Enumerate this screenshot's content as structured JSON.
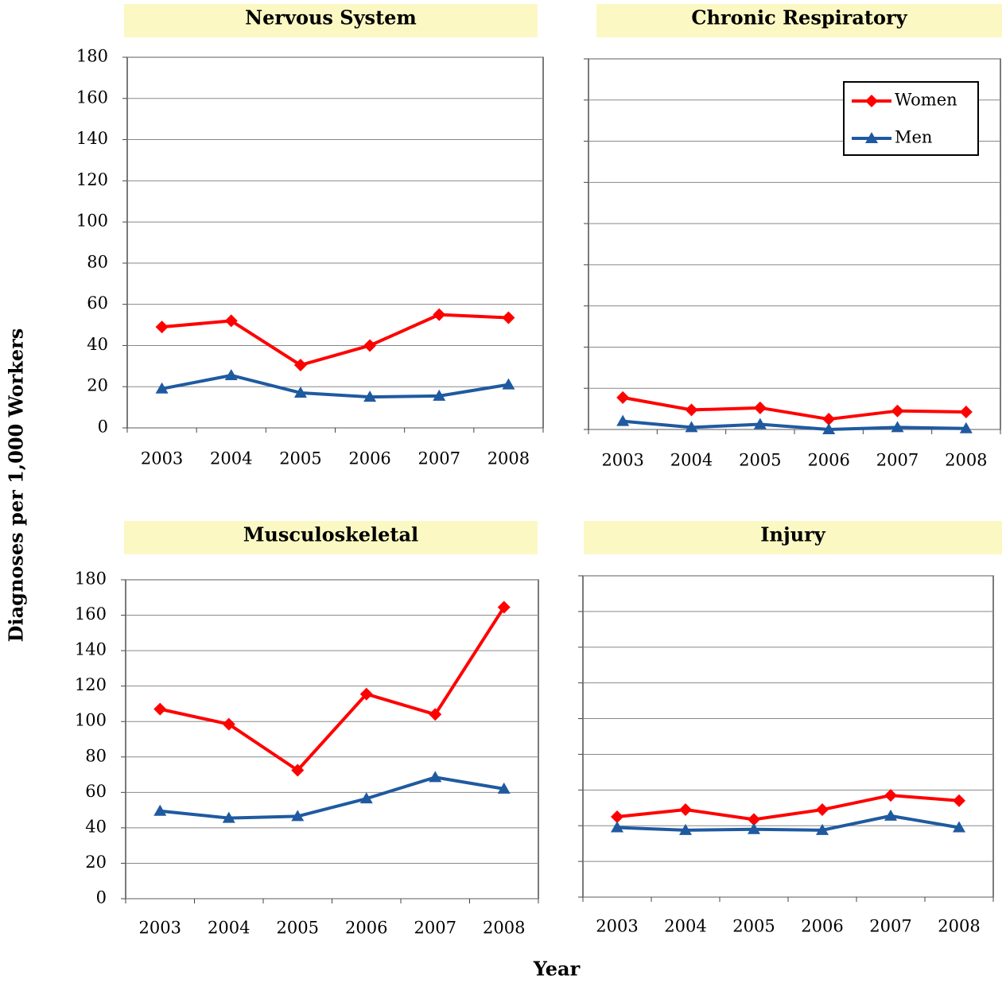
{
  "ylabel": "Diagnoses per 1,000 Workers",
  "xlabel": "Year",
  "chart_data": [
    {
      "type": "line",
      "title": "Nervous System",
      "categories": [
        "2003",
        "2004",
        "2005",
        "2006",
        "2007",
        "2008"
      ],
      "ylim": [
        0,
        180
      ],
      "yticks": [
        0,
        20,
        40,
        60,
        80,
        100,
        120,
        140,
        160,
        180
      ],
      "grid": true,
      "show_ytick_labels": true,
      "series": [
        {
          "color": "#ff0000",
          "marker": "diamond",
          "values": [
            49,
            52,
            30.5,
            40,
            55,
            53.5
          ]
        },
        {
          "color": "#1f5aa0",
          "marker": "triangle",
          "values": [
            19,
            25.5,
            17,
            15,
            15.5,
            21
          ]
        }
      ]
    },
    {
      "type": "line",
      "title": "Chronic Respiratory",
      "categories": [
        "2003",
        "2004",
        "2005",
        "2006",
        "2007",
        "2008"
      ],
      "ylim": [
        0,
        180
      ],
      "yticks": [
        0,
        20,
        40,
        60,
        80,
        100,
        120,
        140,
        160,
        180
      ],
      "grid": true,
      "show_ytick_labels": false,
      "legend": "upper right",
      "series": [
        {
          "name": "Women",
          "color": "#ff0000",
          "marker": "diamond",
          "values": [
            15.5,
            9.5,
            10.5,
            5,
            9,
            8.5
          ]
        },
        {
          "name": "Men",
          "color": "#1f5aa0",
          "marker": "triangle",
          "values": [
            4,
            1,
            2.5,
            0,
            1,
            0.5
          ]
        }
      ]
    },
    {
      "type": "line",
      "title": "Musculoskeletal",
      "categories": [
        "2003",
        "2004",
        "2005",
        "2006",
        "2007",
        "2008"
      ],
      "ylim": [
        0,
        180
      ],
      "yticks": [
        0,
        20,
        40,
        60,
        80,
        100,
        120,
        140,
        160,
        180
      ],
      "grid": true,
      "show_ytick_labels": true,
      "series": [
        {
          "color": "#ff0000",
          "marker": "diamond",
          "values": [
            107,
            98.5,
            72.5,
            115.5,
            104,
            164.5
          ]
        },
        {
          "color": "#1f5aa0",
          "marker": "triangle",
          "values": [
            49.5,
            45.5,
            46.5,
            56.5,
            68.5,
            62
          ]
        }
      ]
    },
    {
      "type": "line",
      "title": "Injury",
      "categories": [
        "2003",
        "2004",
        "2005",
        "2006",
        "2007",
        "2008"
      ],
      "ylim": [
        0,
        180
      ],
      "yticks": [
        0,
        20,
        40,
        60,
        80,
        100,
        120,
        140,
        160,
        180
      ],
      "grid": true,
      "show_ytick_labels": false,
      "series": [
        {
          "color": "#ff0000",
          "marker": "diamond",
          "values": [
            45,
            49,
            43.5,
            49,
            57,
            54
          ]
        },
        {
          "color": "#1f5aa0",
          "marker": "triangle",
          "values": [
            39,
            37.5,
            38,
            37.5,
            45.5,
            39
          ]
        }
      ]
    }
  ]
}
